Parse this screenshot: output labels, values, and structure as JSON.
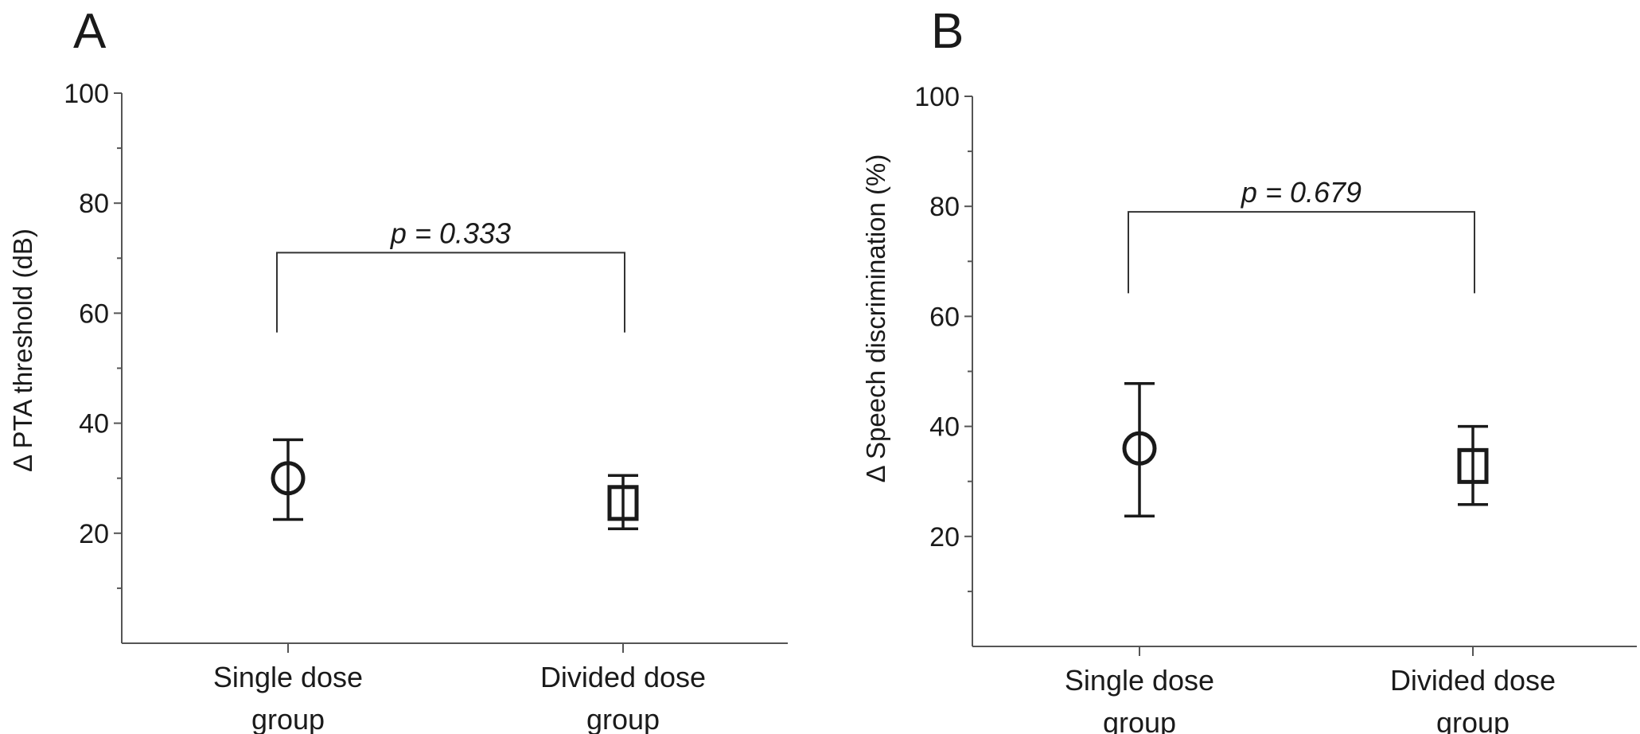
{
  "chart_data": [
    {
      "type": "scatter",
      "panel": "A",
      "ylabel": "Δ PTA threshold (dB)",
      "xlabel": "",
      "categories": [
        "Single dose group",
        "Divided dose group"
      ],
      "category_lines": [
        [
          "Single dose",
          "group"
        ],
        [
          "Divided dose",
          "group"
        ]
      ],
      "ylim": [
        0,
        100
      ],
      "yticks": [
        "100",
        "80",
        "60",
        "40",
        "20"
      ],
      "ytick_values": [
        100,
        80,
        60,
        40,
        20
      ],
      "series": [
        {
          "marker": "circle",
          "category": "Single dose group",
          "mean": 30,
          "lower": 22.5,
          "upper": 37
        },
        {
          "marker": "square",
          "category": "Divided dose group",
          "mean": 25.5,
          "lower": 20.8,
          "upper": 30.5
        }
      ],
      "comparison": {
        "label": "p = 0.333",
        "y": 71,
        "leg_bottom": 56.5
      },
      "grid": false
    },
    {
      "type": "scatter",
      "panel": "B",
      "ylabel": "Δ Speech discrimination (%)",
      "xlabel": "",
      "categories": [
        "Single dose group",
        "Divided dose group"
      ],
      "category_lines": [
        [
          "Single dose",
          "group"
        ],
        [
          "Divided dose",
          "group"
        ]
      ],
      "ylim": [
        0,
        100
      ],
      "yticks": [
        "100",
        "80",
        "60",
        "40",
        "20"
      ],
      "ytick_values": [
        100,
        80,
        60,
        40,
        20
      ],
      "series": [
        {
          "marker": "circle",
          "category": "Single dose group",
          "mean": 36,
          "lower": 23.7,
          "upper": 47.8
        },
        {
          "marker": "square",
          "category": "Divided dose group",
          "mean": 32.8,
          "lower": 25.8,
          "upper": 40
        }
      ],
      "comparison": {
        "label": "p = 0.679",
        "y": 79,
        "leg_bottom": 64.2
      },
      "grid": false
    }
  ]
}
